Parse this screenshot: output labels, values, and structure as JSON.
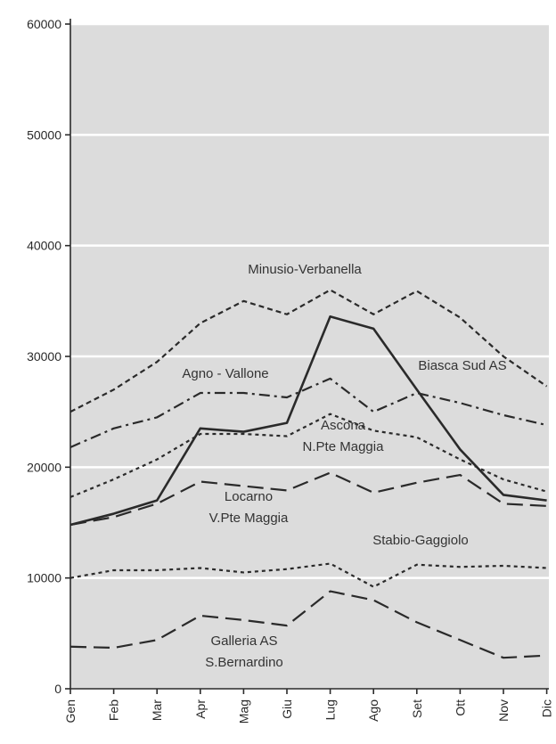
{
  "chart_data": {
    "type": "line",
    "categories": [
      "Gen",
      "Feb",
      "Mar",
      "Apr",
      "Mag",
      "Giu",
      "Lug",
      "Ago",
      "Set",
      "Ott",
      "Nov",
      "Dic"
    ],
    "ylim": [
      0,
      60000
    ],
    "yticks": [
      0,
      10000,
      20000,
      30000,
      40000,
      50000,
      60000
    ],
    "grid": true,
    "series": [
      {
        "name": "Minusio-Verbanella",
        "label_lines": [
          "Minusio-Verbanella"
        ],
        "style": "dotted-dash",
        "values": [
          25000,
          27000,
          29500,
          33000,
          35000,
          33800,
          36000,
          33800,
          35900,
          33500,
          30000,
          27300
        ]
      },
      {
        "name": "Biasca Sud AS",
        "label_lines": [
          "Biasca Sud AS"
        ],
        "style": "solid",
        "values": [
          14800,
          15800,
          17000,
          23500,
          23200,
          24000,
          33600,
          32500,
          27000,
          21600,
          17500,
          17000
        ]
      },
      {
        "name": "Agno - Vallone",
        "label_lines": [
          "Agno - Vallone"
        ],
        "style": "dash-dot",
        "values": [
          21800,
          23500,
          24500,
          26700,
          26700,
          26300,
          28000,
          25000,
          26700,
          25800,
          24700,
          23800
        ]
      },
      {
        "name": "Ascona N.Pte Maggia",
        "label_lines": [
          "Ascona",
          "N.Pte Maggia"
        ],
        "style": "dotted",
        "values": [
          17300,
          18900,
          20700,
          23000,
          23000,
          22800,
          24800,
          23300,
          22700,
          20700,
          18900,
          17800
        ]
      },
      {
        "name": "Locarno V.Pte Maggia",
        "label_lines": [
          "Locarno",
          "V.Pte Maggia"
        ],
        "style": "long-dash",
        "values": [
          14800,
          15500,
          16700,
          18700,
          18300,
          17900,
          19500,
          17700,
          18600,
          19300,
          16700,
          16500
        ]
      },
      {
        "name": "Stabio-Gaggiolo",
        "label_lines": [
          "Stabio-Gaggiolo"
        ],
        "style": "dotted",
        "values": [
          10000,
          10700,
          10700,
          10900,
          10500,
          10800,
          11300,
          9200,
          11200,
          11000,
          11100,
          10900
        ]
      },
      {
        "name": "Galleria AS S.Bernardino",
        "label_lines": [
          "Galleria AS",
          "S.Bernardino"
        ],
        "style": "long-dash",
        "values": [
          3800,
          3700,
          4400,
          6600,
          6200,
          5700,
          8800,
          8000,
          6000,
          4400,
          2800,
          3000
        ]
      }
    ],
    "colors": {
      "plot_background": "#dcdcdc",
      "gridline": "#ffffff",
      "axis": "#2a2a2a",
      "series_line": "#2a2a2a"
    }
  }
}
